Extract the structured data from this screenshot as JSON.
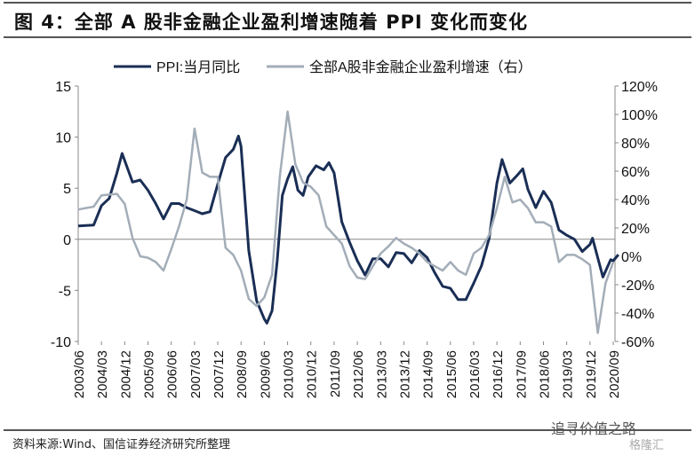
{
  "title": "图 4：全部 A 股非金融企业盈利增速随着 PPI 变化而变化",
  "source": "资料来源:Wind、国信证券经济研究所整理",
  "watermark": "追寻价值之路",
  "watermark2": "格隆汇",
  "chart_data": {
    "type": "line",
    "legend": [
      "PPI:当月同比",
      "全部A股非金融企业盈利增速（右）"
    ],
    "legend_position": "top",
    "colors": [
      "#1a2e55",
      "#a3adb8"
    ],
    "y_left": {
      "range": [
        -10,
        15
      ],
      "ticks": [
        "-10",
        "-5",
        "0",
        "5",
        "10",
        "15"
      ],
      "values": [
        -10,
        -5,
        0,
        5,
        10,
        15
      ]
    },
    "y_right": {
      "range": [
        -60,
        120
      ],
      "ticks": [
        "-60%",
        "-40%",
        "-20%",
        "0%",
        "20%",
        "40%",
        "60%",
        "80%",
        "100%",
        "120%"
      ],
      "values": [
        -60,
        -40,
        -20,
        0,
        20,
        40,
        60,
        80,
        100,
        120
      ]
    },
    "x_ticks": [
      "2003/06",
      "2004/03",
      "2004/12",
      "2005/09",
      "2006/06",
      "2007/03",
      "2007/12",
      "2008/09",
      "2009/06",
      "2010/03",
      "2010/12",
      "2011/09",
      "2012/06",
      "2013/03",
      "2013/12",
      "2014/09",
      "2015/06",
      "2016/03",
      "2016/12",
      "2017/09",
      "2018/06",
      "2019/03",
      "2019/12",
      "2020/09"
    ],
    "series": [
      {
        "name": "PPI:当月同比",
        "axis": "left",
        "points": [
          [
            "2003/06",
            1.3
          ],
          [
            "2003/12",
            1.4
          ],
          [
            "2004/03",
            3.3
          ],
          [
            "2004/06",
            4
          ],
          [
            "2004/09",
            6.5
          ],
          [
            "2004/11",
            8.4
          ],
          [
            "2005/03",
            5.6
          ],
          [
            "2005/06",
            5.8
          ],
          [
            "2005/09",
            4.8
          ],
          [
            "2005/12",
            3.5
          ],
          [
            "2006/03",
            2.0
          ],
          [
            "2006/06",
            3.5
          ],
          [
            "2006/09",
            3.5
          ],
          [
            "2006/12",
            3.1
          ],
          [
            "2007/03",
            2.8
          ],
          [
            "2007/06",
            2.5
          ],
          [
            "2007/09",
            2.7
          ],
          [
            "2007/12",
            5.4
          ],
          [
            "2008/03",
            8.0
          ],
          [
            "2008/06",
            8.8
          ],
          [
            "2008/08",
            10.1
          ],
          [
            "2008/09",
            9.1
          ],
          [
            "2008/12",
            -1.1
          ],
          [
            "2009/03",
            -6.0
          ],
          [
            "2009/06",
            -7.8
          ],
          [
            "2009/07",
            -8.2
          ],
          [
            "2009/09",
            -7
          ],
          [
            "2009/11",
            -2.1
          ],
          [
            "2010/01",
            4.3
          ],
          [
            "2010/03",
            5.9
          ],
          [
            "2010/05",
            7.1
          ],
          [
            "2010/07",
            4.8
          ],
          [
            "2010/09",
            4.3
          ],
          [
            "2010/11",
            6.1
          ],
          [
            "2011/02",
            7.2
          ],
          [
            "2011/05",
            6.8
          ],
          [
            "2011/07",
            7.5
          ],
          [
            "2011/09",
            6.5
          ],
          [
            "2011/12",
            1.7
          ],
          [
            "2012/03",
            -0.3
          ],
          [
            "2012/06",
            -2.1
          ],
          [
            "2012/09",
            -3.5
          ],
          [
            "2012/12",
            -1.9
          ],
          [
            "2013/03",
            -1.9
          ],
          [
            "2013/06",
            -2.7
          ],
          [
            "2013/09",
            -1.3
          ],
          [
            "2013/12",
            -1.4
          ],
          [
            "2014/03",
            -2.3
          ],
          [
            "2014/06",
            -1.1
          ],
          [
            "2014/09",
            -1.8
          ],
          [
            "2014/12",
            -3.3
          ],
          [
            "2015/03",
            -4.6
          ],
          [
            "2015/06",
            -4.8
          ],
          [
            "2015/09",
            -5.9
          ],
          [
            "2015/12",
            -5.9
          ],
          [
            "2016/03",
            -4.3
          ],
          [
            "2016/06",
            -2.6
          ],
          [
            "2016/09",
            0.1
          ],
          [
            "2016/12",
            5.5
          ],
          [
            "2017/02",
            7.8
          ],
          [
            "2017/05",
            5.5
          ],
          [
            "2017/08",
            6.3
          ],
          [
            "2017/10",
            6.9
          ],
          [
            "2017/12",
            4.9
          ],
          [
            "2018/03",
            3.1
          ],
          [
            "2018/06",
            4.7
          ],
          [
            "2018/09",
            3.6
          ],
          [
            "2018/12",
            0.9
          ],
          [
            "2019/03",
            0.4
          ],
          [
            "2019/06",
            0
          ],
          [
            "2019/09",
            -1.2
          ],
          [
            "2019/12",
            -0.5
          ],
          [
            "2020/01",
            0.1
          ],
          [
            "2020/05",
            -3.7
          ],
          [
            "2020/08",
            -2
          ],
          [
            "2020/09",
            -2.1
          ],
          [
            "2020/11",
            -1.5
          ]
        ]
      },
      {
        "name": "全部A股非金融企业盈利增速（右）",
        "axis": "right",
        "points": [
          [
            "2003/06",
            33
          ],
          [
            "2003/12",
            35
          ],
          [
            "2004/03",
            43
          ],
          [
            "2004/09",
            44
          ],
          [
            "2004/12",
            37
          ],
          [
            "2005/03",
            13
          ],
          [
            "2005/06",
            0
          ],
          [
            "2005/09",
            -1
          ],
          [
            "2005/12",
            -4
          ],
          [
            "2006/03",
            -10
          ],
          [
            "2006/06",
            5
          ],
          [
            "2006/09",
            21
          ],
          [
            "2006/12",
            40
          ],
          [
            "2007/03",
            90
          ],
          [
            "2007/06",
            59
          ],
          [
            "2007/09",
            56
          ],
          [
            "2007/12",
            56
          ],
          [
            "2008/03",
            6
          ],
          [
            "2008/06",
            1
          ],
          [
            "2008/09",
            -10
          ],
          [
            "2008/12",
            -30
          ],
          [
            "2009/03",
            -35
          ],
          [
            "2009/06",
            -29
          ],
          [
            "2009/09",
            -13
          ],
          [
            "2009/12",
            56
          ],
          [
            "2010/03",
            102
          ],
          [
            "2010/06",
            65
          ],
          [
            "2010/09",
            52
          ],
          [
            "2010/12",
            49
          ],
          [
            "2011/03",
            43
          ],
          [
            "2011/06",
            21
          ],
          [
            "2011/09",
            15
          ],
          [
            "2011/12",
            9
          ],
          [
            "2012/03",
            -7
          ],
          [
            "2012/06",
            -15
          ],
          [
            "2012/09",
            -16
          ],
          [
            "2012/12",
            -7
          ],
          [
            "2013/03",
            2
          ],
          [
            "2013/06",
            7
          ],
          [
            "2013/09",
            13
          ],
          [
            "2013/12",
            9
          ],
          [
            "2014/03",
            6
          ],
          [
            "2014/06",
            2
          ],
          [
            "2014/09",
            -4
          ],
          [
            "2014/12",
            -7
          ],
          [
            "2015/03",
            -10
          ],
          [
            "2015/06",
            -4
          ],
          [
            "2015/09",
            -10
          ],
          [
            "2015/12",
            -13
          ],
          [
            "2016/03",
            2
          ],
          [
            "2016/06",
            6
          ],
          [
            "2016/09",
            15
          ],
          [
            "2016/12",
            34
          ],
          [
            "2017/03",
            56
          ],
          [
            "2017/06",
            38
          ],
          [
            "2017/09",
            40
          ],
          [
            "2017/12",
            34
          ],
          [
            "2018/03",
            24
          ],
          [
            "2018/06",
            24
          ],
          [
            "2018/09",
            21
          ],
          [
            "2018/12",
            -4
          ],
          [
            "2019/03",
            1
          ],
          [
            "2019/06",
            1
          ],
          [
            "2019/09",
            -2
          ],
          [
            "2019/12",
            -6
          ],
          [
            "2020/03",
            -54
          ],
          [
            "2020/06",
            -19
          ],
          [
            "2020/09",
            -4
          ]
        ]
      }
    ]
  }
}
